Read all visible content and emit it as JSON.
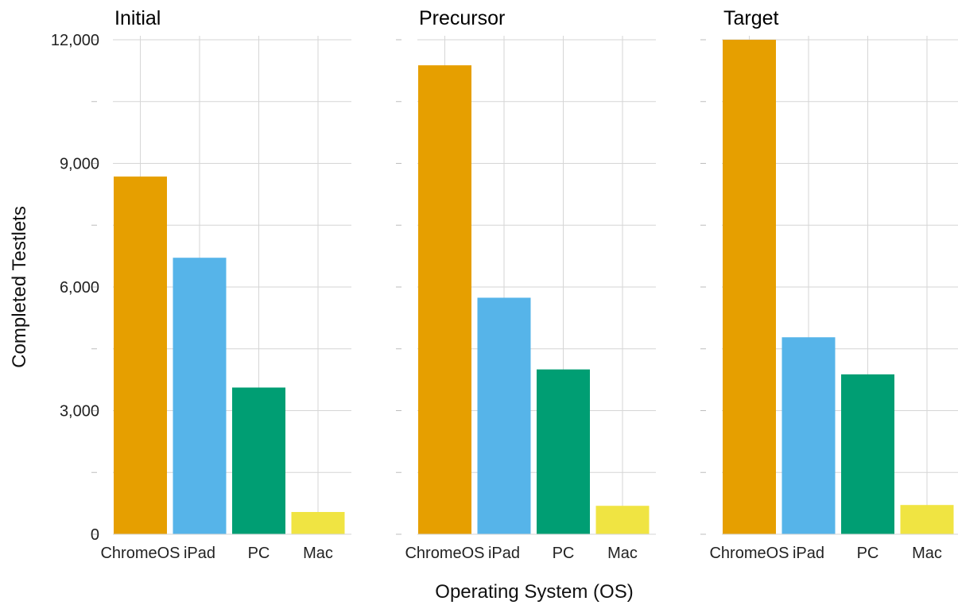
{
  "chart_data": {
    "type": "bar",
    "xlabel": "Operating System (OS)",
    "ylabel": "Completed Testlets",
    "ylim": [
      0,
      12000
    ],
    "yticks": [
      0,
      3000,
      6000,
      9000,
      12000
    ],
    "ytick_labels": [
      "0",
      "3,000",
      "6,000",
      "9,000",
      "12,000"
    ],
    "categories": [
      "ChromeOS",
      "iPad",
      "PC",
      "Mac"
    ],
    "colors": {
      "ChromeOS": "#E69F00",
      "iPad": "#56B4E9",
      "PC": "#009E73",
      "Mac": "#F0E442"
    },
    "grid": true,
    "legend": "none",
    "panels": [
      {
        "title": "Initial",
        "values": [
          8680,
          6710,
          3560,
          540
        ]
      },
      {
        "title": "Precursor",
        "values": [
          11380,
          5740,
          4000,
          690
        ]
      },
      {
        "title": "Target",
        "values": [
          12000,
          4780,
          3880,
          710
        ]
      }
    ]
  }
}
